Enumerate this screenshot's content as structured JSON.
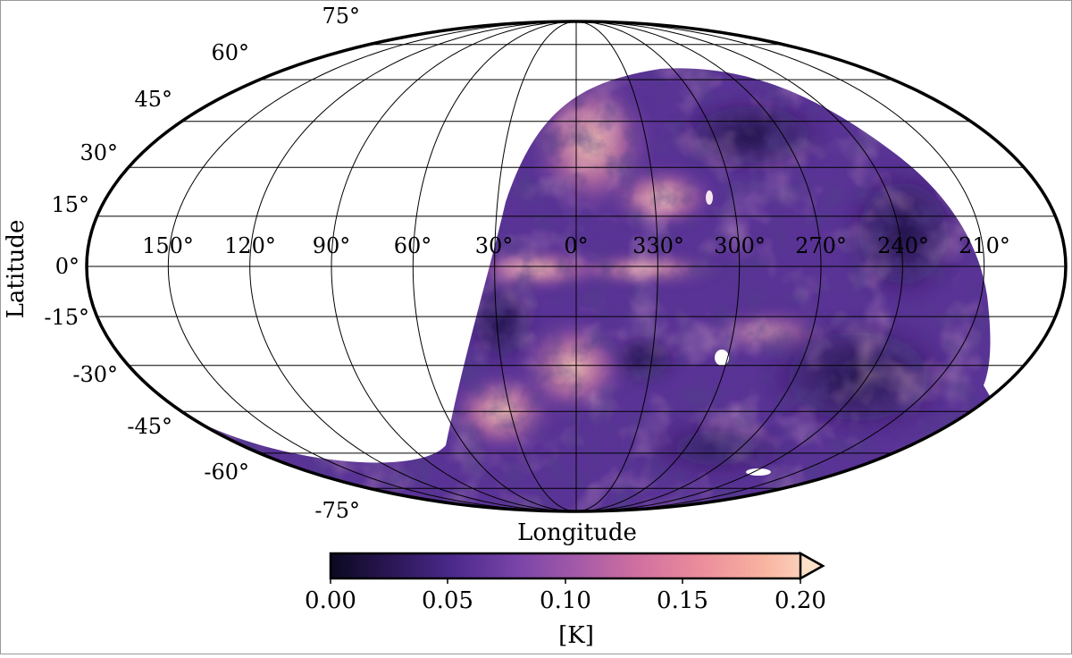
{
  "map": {
    "projection": "mollweide",
    "coordinates": "galactic",
    "sky_coverage": "partial (southern sky survey; northern-left region unobserved)",
    "colormap": [
      "#0b0920",
      "#2a1654",
      "#4c2a8c",
      "#7a44a8",
      "#a35aa8",
      "#cf6fa0",
      "#ec8c9c",
      "#f8b3a0",
      "#fde0c8"
    ],
    "background_color": "#ffffff",
    "latitude_ticks": [
      "75°",
      "60°",
      "45°",
      "30°",
      "15°",
      "0°",
      "-15°",
      "-30°",
      "-45°",
      "-60°",
      "-75°"
    ],
    "longitude_ticks": [
      "150°",
      "120°",
      "90°",
      "60°",
      "30°",
      "0°",
      "330°",
      "300°",
      "270°",
      "240°",
      "210°"
    ],
    "xlabel": "Longitude",
    "ylabel": "Latitude"
  },
  "colorbar": {
    "ticks": [
      "0.00",
      "0.05",
      "0.10",
      "0.15",
      "0.20"
    ],
    "range": [
      0.0,
      0.2
    ],
    "extend": "max",
    "label": "[K]"
  }
}
